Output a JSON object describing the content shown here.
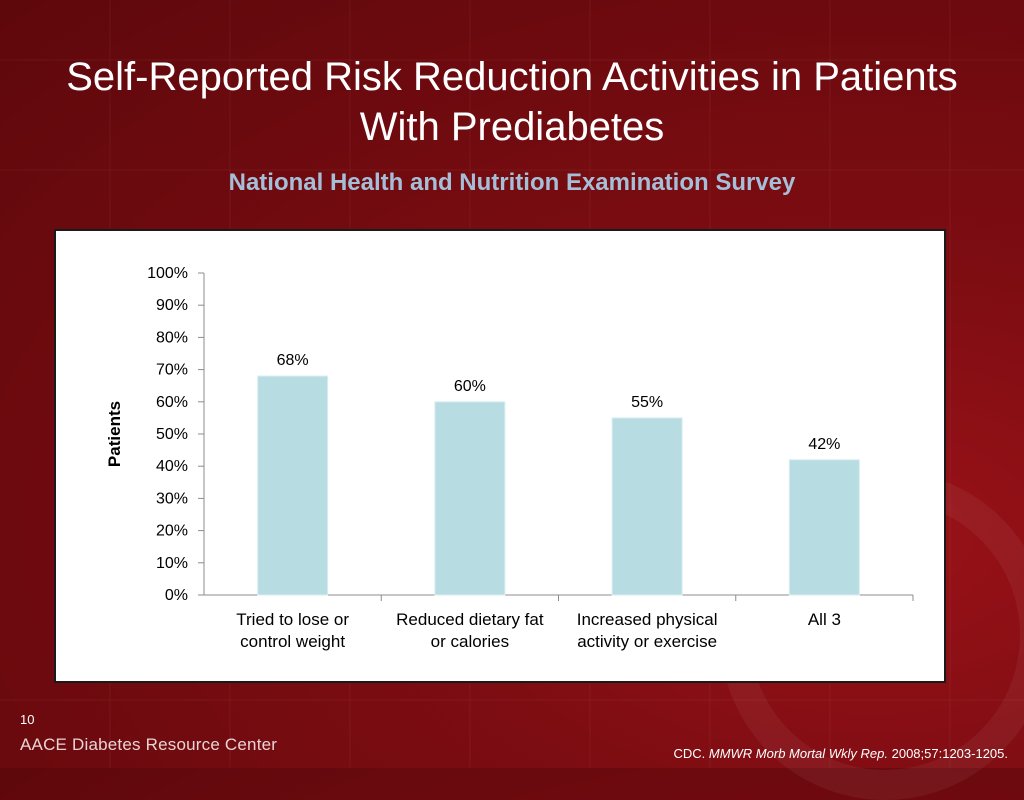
{
  "slide": {
    "title": "Self-Reported Risk Reduction Activities in Patients With Prediabetes",
    "subtitle": "National Health and Nutrition Examination Survey",
    "slide_number": "10",
    "brand": "AACE Diabetes Resource Center",
    "citation": {
      "prefix": "CDC. ",
      "journal": "MMWR Morb Mortal Wkly Rep.",
      "details": " 2008;57:1203-1205."
    }
  },
  "colors": {
    "bar_fill": "#b7dde2",
    "background": "#7e0d12",
    "subtitle": "#a6bfd9"
  },
  "chart_data": {
    "type": "bar",
    "categories": [
      [
        "Tried to lose or",
        "control weight"
      ],
      [
        "Reduced dietary fat",
        "or calories"
      ],
      [
        "Increased physical",
        "activity or exercise"
      ],
      [
        "All 3"
      ]
    ],
    "values": [
      68,
      60,
      55,
      42
    ],
    "data_labels": [
      "68%",
      "60%",
      "55%",
      "42%"
    ],
    "ylabel": "Patients",
    "ylim": [
      0,
      100
    ],
    "yticks": [
      "0%",
      "10%",
      "20%",
      "30%",
      "40%",
      "50%",
      "60%",
      "70%",
      "80%",
      "90%",
      "100%"
    ],
    "grid": false,
    "legend": "none"
  }
}
